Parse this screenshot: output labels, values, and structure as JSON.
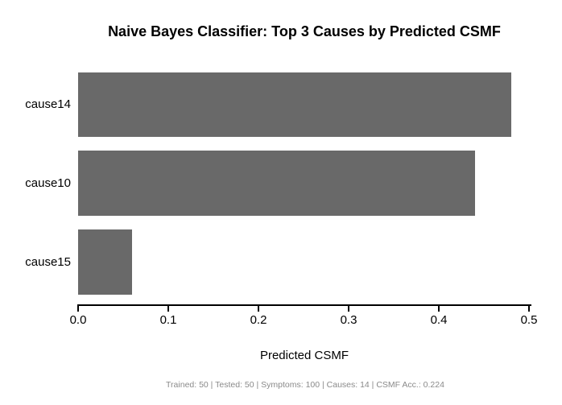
{
  "chart_data": {
    "type": "bar",
    "orientation": "horizontal",
    "title": "Naive Bayes Classifier: Top 3 Causes by Predicted CSMF",
    "categories": [
      "cause14",
      "cause10",
      "cause15"
    ],
    "values": [
      0.48,
      0.44,
      0.06
    ],
    "xlabel": "Predicted CSMF",
    "ylabel": "",
    "xlim": [
      0.0,
      0.5
    ],
    "xticks": [
      0.0,
      0.1,
      0.2,
      0.3,
      0.4,
      0.5
    ],
    "xtick_labels": [
      "0.0",
      "0.1",
      "0.2",
      "0.3",
      "0.4",
      "0.5"
    ],
    "grid": false,
    "legend": false,
    "bar_color": "#696969",
    "bar_border": "none",
    "axis_color": "#000000",
    "text_color": "#000000",
    "background_color": "#ffffff"
  },
  "footer": {
    "text": "Trained: 50 | Tested: 50 | Symptoms: 100 | Causes: 14 | CSMF Acc.: 0.224",
    "color": "#8a8a8a"
  }
}
